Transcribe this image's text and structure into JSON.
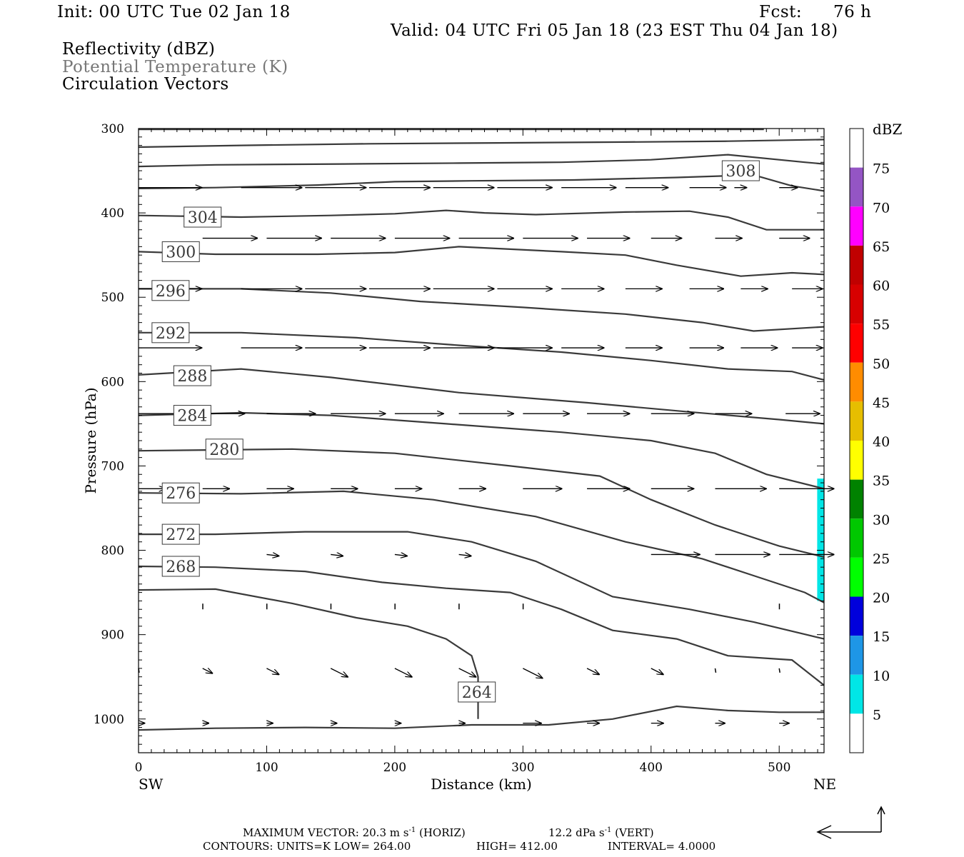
{
  "header": {
    "init": "Init: 00 UTC Tue 02 Jan 18",
    "fcst_label": "Fcst:",
    "fcst_value": "76 h",
    "valid": "Valid: 04 UTC Fri 05 Jan 18 (23 EST Thu 04 Jan 18)",
    "fields": [
      "Reflectivity (dBZ)",
      "Potential Temperature (K)",
      "Circulation Vectors"
    ]
  },
  "chart_data": {
    "type": "cross-section",
    "xlabel": "Distance (km)",
    "ylabel": "Pressure (hPa)",
    "xlim": [
      0,
      535
    ],
    "ylim": [
      1040,
      300
    ],
    "xticks": [
      0,
      100,
      200,
      300,
      400,
      500
    ],
    "yticks": [
      300,
      400,
      500,
      600,
      700,
      800,
      900,
      1000
    ],
    "endpoints": {
      "left": "SW",
      "right": "NE"
    },
    "colorbar": {
      "title": "dBZ",
      "labels": [
        "5",
        "10",
        "15",
        "20",
        "25",
        "30",
        "35",
        "40",
        "45",
        "50",
        "55",
        "60",
        "65",
        "70",
        "75"
      ],
      "colors": [
        "#ffffff",
        "#00e6e6",
        "#1e96e6",
        "#0000dc",
        "#00ff00",
        "#00c800",
        "#008200",
        "#ffff00",
        "#e6be00",
        "#ff8c00",
        "#ff0000",
        "#d70000",
        "#c00000",
        "#ff00ff",
        "#9455c4",
        "#ffffff"
      ]
    },
    "contour_color": "#3a3a3a",
    "theta_contours": [
      {
        "label": "",
        "points": [
          [
            0,
            301
          ],
          [
            150,
            301
          ],
          [
            300,
            301
          ],
          [
            450,
            301
          ],
          [
            488,
            301
          ]
        ]
      },
      {
        "label": "",
        "points": [
          [
            0,
            322
          ],
          [
            80,
            320
          ],
          [
            180,
            318
          ],
          [
            280,
            317
          ],
          [
            380,
            316
          ],
          [
            460,
            315
          ],
          [
            535,
            313
          ]
        ]
      },
      {
        "label": "",
        "points": [
          [
            0,
            345
          ],
          [
            60,
            343
          ],
          [
            160,
            342
          ],
          [
            250,
            341
          ],
          [
            330,
            340
          ],
          [
            400,
            337
          ],
          [
            460,
            331
          ],
          [
            520,
            340
          ],
          [
            535,
            342
          ]
        ]
      },
      {
        "label": "308",
        "label_at": [
          470,
          350
        ],
        "points": [
          [
            0,
            371
          ],
          [
            60,
            370
          ],
          [
            140,
            367
          ],
          [
            200,
            363
          ],
          [
            260,
            362
          ],
          [
            340,
            361
          ],
          [
            420,
            358
          ],
          [
            480,
            355
          ],
          [
            510,
            368
          ],
          [
            535,
            374
          ]
        ]
      },
      {
        "label": "304",
        "label_at": [
          50,
          405
        ],
        "points": [
          [
            0,
            403
          ],
          [
            80,
            405
          ],
          [
            150,
            403
          ],
          [
            200,
            401
          ],
          [
            240,
            397
          ],
          [
            270,
            400
          ],
          [
            310,
            402
          ],
          [
            380,
            399
          ],
          [
            430,
            398
          ],
          [
            460,
            405
          ],
          [
            490,
            420
          ],
          [
            535,
            420
          ]
        ]
      },
      {
        "label": "300",
        "label_at": [
          33,
          446
        ],
        "points": [
          [
            0,
            446
          ],
          [
            60,
            449
          ],
          [
            140,
            449
          ],
          [
            200,
            447
          ],
          [
            250,
            440
          ],
          [
            290,
            443
          ],
          [
            330,
            446
          ],
          [
            380,
            450
          ],
          [
            420,
            462
          ],
          [
            470,
            475
          ],
          [
            510,
            471
          ],
          [
            535,
            473
          ]
        ]
      },
      {
        "label": "296",
        "label_at": [
          25,
          492
        ],
        "points": [
          [
            0,
            490
          ],
          [
            80,
            490
          ],
          [
            150,
            495
          ],
          [
            220,
            505
          ],
          [
            300,
            512
          ],
          [
            380,
            520
          ],
          [
            440,
            530
          ],
          [
            480,
            540
          ],
          [
            535,
            535
          ]
        ]
      },
      {
        "label": "292",
        "label_at": [
          25,
          542
        ],
        "points": [
          [
            0,
            542
          ],
          [
            80,
            542
          ],
          [
            170,
            548
          ],
          [
            250,
            557
          ],
          [
            330,
            565
          ],
          [
            400,
            575
          ],
          [
            460,
            585
          ],
          [
            510,
            588
          ],
          [
            535,
            598
          ]
        ]
      },
      {
        "label": "288",
        "label_at": [
          42,
          593
        ],
        "points": [
          [
            0,
            592
          ],
          [
            80,
            585
          ],
          [
            150,
            595
          ],
          [
            250,
            613
          ],
          [
            350,
            625
          ],
          [
            430,
            636
          ],
          [
            500,
            645
          ],
          [
            535,
            650
          ]
        ]
      },
      {
        "label": "284",
        "label_at": [
          42,
          640
        ],
        "points": [
          [
            0,
            640
          ],
          [
            80,
            637
          ],
          [
            150,
            640
          ],
          [
            240,
            650
          ],
          [
            330,
            660
          ],
          [
            400,
            670
          ],
          [
            450,
            685
          ],
          [
            490,
            710
          ],
          [
            535,
            727
          ]
        ]
      },
      {
        "label": "280",
        "label_at": [
          67,
          680
        ],
        "points": [
          [
            0,
            682
          ],
          [
            60,
            681
          ],
          [
            120,
            680
          ],
          [
            200,
            685
          ],
          [
            290,
            700
          ],
          [
            360,
            712
          ],
          [
            400,
            740
          ],
          [
            450,
            770
          ],
          [
            500,
            795
          ],
          [
            535,
            808
          ]
        ]
      },
      {
        "label": "276",
        "label_at": [
          33,
          732
        ],
        "points": [
          [
            0,
            732
          ],
          [
            80,
            733
          ],
          [
            160,
            730
          ],
          [
            230,
            740
          ],
          [
            310,
            760
          ],
          [
            380,
            790
          ],
          [
            440,
            810
          ],
          [
            480,
            830
          ],
          [
            520,
            850
          ],
          [
            535,
            862
          ]
        ]
      },
      {
        "label": "272",
        "label_at": [
          33,
          781
        ],
        "points": [
          [
            0,
            781
          ],
          [
            60,
            781
          ],
          [
            130,
            778
          ],
          [
            210,
            778
          ],
          [
            260,
            790
          ],
          [
            310,
            813
          ],
          [
            370,
            855
          ],
          [
            430,
            870
          ],
          [
            480,
            885
          ],
          [
            535,
            905
          ]
        ]
      },
      {
        "label": "268",
        "label_at": [
          33,
          819
        ],
        "points": [
          [
            0,
            819
          ],
          [
            60,
            820
          ],
          [
            130,
            825
          ],
          [
            190,
            838
          ],
          [
            240,
            845
          ],
          [
            290,
            850
          ],
          [
            330,
            870
          ],
          [
            370,
            895
          ],
          [
            420,
            905
          ],
          [
            460,
            925
          ],
          [
            510,
            930
          ],
          [
            535,
            960
          ]
        ]
      },
      {
        "label": "264",
        "label_at": [
          264,
          968
        ],
        "points": [
          [
            0,
            847
          ],
          [
            60,
            846
          ],
          [
            120,
            863
          ],
          [
            170,
            880
          ],
          [
            210,
            890
          ],
          [
            240,
            905
          ],
          [
            260,
            925
          ],
          [
            265,
            950
          ],
          [
            265,
            1000
          ]
        ]
      },
      {
        "label": "",
        "points": [
          [
            0,
            1013
          ],
          [
            60,
            1011
          ],
          [
            130,
            1010
          ],
          [
            200,
            1011
          ],
          [
            260,
            1007
          ],
          [
            320,
            1007
          ],
          [
            370,
            1000
          ],
          [
            420,
            985
          ],
          [
            460,
            990
          ],
          [
            500,
            992
          ],
          [
            535,
            992
          ]
        ]
      }
    ],
    "vectors": [
      {
        "p": 370,
        "items": [
          [
            0,
            52
          ],
          [
            80,
            50
          ],
          [
            130,
            50
          ],
          [
            180,
            50
          ],
          [
            230,
            50
          ],
          [
            280,
            45
          ],
          [
            330,
            45
          ],
          [
            380,
            35
          ],
          [
            430,
            30
          ],
          [
            465,
            10
          ],
          [
            500,
            15
          ]
        ]
      },
      {
        "p": 430,
        "items": [
          [
            50,
            45
          ],
          [
            100,
            45
          ],
          [
            150,
            45
          ],
          [
            200,
            45
          ],
          [
            250,
            45
          ],
          [
            300,
            45
          ],
          [
            350,
            35
          ],
          [
            400,
            25
          ],
          [
            450,
            22
          ],
          [
            500,
            25
          ]
        ]
      },
      {
        "p": 490,
        "items": [
          [
            0,
            52
          ],
          [
            80,
            50
          ],
          [
            130,
            50
          ],
          [
            180,
            50
          ],
          [
            230,
            50
          ],
          [
            280,
            45
          ],
          [
            330,
            35
          ],
          [
            380,
            30
          ],
          [
            430,
            28
          ],
          [
            470,
            22
          ],
          [
            510,
            25
          ]
        ]
      },
      {
        "p": 560,
        "items": [
          [
            0,
            52
          ],
          [
            80,
            50
          ],
          [
            130,
            50
          ],
          [
            180,
            50
          ],
          [
            230,
            50
          ],
          [
            280,
            45
          ],
          [
            330,
            35
          ],
          [
            380,
            30
          ],
          [
            430,
            28
          ],
          [
            470,
            30
          ],
          [
            510,
            25
          ]
        ]
      },
      {
        "p": 638,
        "items": [
          [
            0,
            40
          ],
          [
            40,
            45
          ],
          [
            100,
            40
          ],
          [
            150,
            45
          ],
          [
            200,
            40
          ],
          [
            250,
            45
          ],
          [
            300,
            38
          ],
          [
            350,
            35
          ],
          [
            400,
            35
          ],
          [
            450,
            30
          ],
          [
            505,
            28
          ]
        ]
      },
      {
        "p": 727,
        "items": [
          [
            0,
            22
          ],
          [
            50,
            22
          ],
          [
            100,
            22
          ],
          [
            150,
            22
          ],
          [
            200,
            22
          ],
          [
            250,
            22
          ],
          [
            300,
            32
          ],
          [
            350,
            35
          ],
          [
            400,
            35
          ],
          [
            450,
            42
          ],
          [
            500,
            45
          ]
        ]
      },
      {
        "p": 805,
        "items": [
          [
            100,
            10
          ],
          [
            150,
            10
          ],
          [
            200,
            10
          ],
          [
            250,
            10
          ],
          [
            400,
            40
          ],
          [
            450,
            45
          ],
          [
            500,
            45
          ]
        ]
      },
      {
        "p": 870,
        "items": [
          [
            0,
            0
          ],
          [
            50,
            0
          ],
          [
            100,
            0
          ],
          [
            150,
            0
          ],
          [
            200,
            0
          ],
          [
            250,
            0
          ],
          [
            450,
            0
          ]
        ]
      },
      {
        "p": 940,
        "items": [
          [
            0,
            0
          ],
          [
            50,
            8
          ],
          [
            100,
            10
          ],
          [
            150,
            14
          ],
          [
            200,
            14
          ],
          [
            250,
            14
          ],
          [
            300,
            16
          ],
          [
            350,
            10
          ],
          [
            400,
            10
          ],
          [
            450,
            0
          ],
          [
            500,
            0
          ]
        ]
      },
      {
        "p": 1005,
        "items": [
          [
            0,
            5
          ],
          [
            50,
            5
          ],
          [
            100,
            5
          ],
          [
            150,
            5
          ],
          [
            200,
            5
          ],
          [
            250,
            5
          ],
          [
            300,
            15
          ],
          [
            350,
            10
          ],
          [
            400,
            10
          ],
          [
            450,
            8
          ],
          [
            500,
            8
          ]
        ]
      }
    ],
    "reflectivity_patch": {
      "x": [
        533,
        535
      ],
      "p": [
        715,
        860
      ],
      "dbz": 7
    }
  },
  "footer": {
    "line1_a": "MAXIMUM VECTOR:  20.3 m s",
    "line1_b": "-1",
    "line1_c": " (HORIZ)",
    "line1_d": "12.2 dPa s",
    "line1_e": "-1",
    "line1_f": " (VERT)",
    "line2_a": "CONTOURS:  UNITS=K  LOW=  264.00",
    "line2_b": "HIGH=  412.00",
    "line2_c": "INTERVAL=    4.0000"
  }
}
